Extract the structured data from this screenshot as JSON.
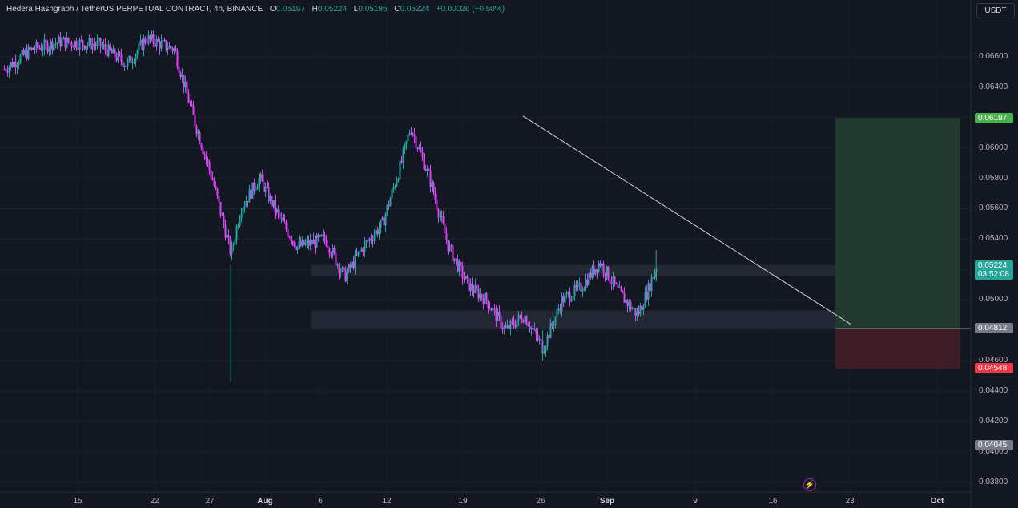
{
  "header": {
    "symbol": "Hedera Hashgraph / TetherUS PERPETUAL CONTRACT, 4h, BINANCE",
    "open_label": "O",
    "open": "0.05197",
    "high_label": "H",
    "high": "0.05224",
    "low_label": "L",
    "low": "0.05195",
    "close_label": "C",
    "close": "0.05224",
    "change": "+0.00026 (+0.50%)"
  },
  "currency_button": "USDT",
  "colors": {
    "background": "#131722",
    "bullish": "#26a69a",
    "bearish": "#e040fb",
    "profit_zone": "#223a2e",
    "loss_zone": "#3d1e26",
    "trendline": "#d1d4dc",
    "zone": "#2a2e39"
  },
  "price_badges": {
    "target": {
      "value": "0.06197",
      "color": "#4caf50"
    },
    "current": {
      "value": "0.05224",
      "time": "03:52:08",
      "color": "#26a69a"
    },
    "entry": {
      "value": "0.04812",
      "color": "#787b86"
    },
    "stop": {
      "value": "0.04548",
      "color": "#f23645"
    },
    "marker": {
      "value": "0.04045",
      "color": "#787b86"
    }
  },
  "icons": {
    "alert": "lightning-icon"
  },
  "chart_data": {
    "type": "candlestick",
    "title": "Hedera Hashgraph / TetherUS PERPETUAL CONTRACT, 4h, BINANCE",
    "xlabel": "",
    "ylabel": "",
    "y_ticks": [
      "0.06600",
      "0.06400",
      "0.06200",
      "0.06000",
      "0.05800",
      "0.05600",
      "0.05400",
      "0.05200",
      "0.05000",
      "0.04800",
      "0.04600",
      "0.04400",
      "0.04200",
      "0.04000",
      "0.03800"
    ],
    "x_ticks": [
      {
        "label": "15",
        "bold": false
      },
      {
        "label": "22",
        "bold": false
      },
      {
        "label": "27",
        "bold": false
      },
      {
        "label": "Aug",
        "bold": true
      },
      {
        "label": "6",
        "bold": false
      },
      {
        "label": "12",
        "bold": false
      },
      {
        "label": "19",
        "bold": false
      },
      {
        "label": "26",
        "bold": false
      },
      {
        "label": "Sep",
        "bold": true
      },
      {
        "label": "9",
        "bold": false
      },
      {
        "label": "16",
        "bold": false
      },
      {
        "label": "23",
        "bold": false
      },
      {
        "label": "Oct",
        "bold": true
      }
    ],
    "approx_close_path": [
      [
        "Jul 12",
        0.0652
      ],
      [
        "Jul 15",
        0.0665
      ],
      [
        "Jul 18",
        0.067
      ],
      [
        "Jul 22",
        0.0668
      ],
      [
        "Jul 25",
        0.0655
      ],
      [
        "Jul 27",
        0.0672
      ],
      [
        "Jul 30",
        0.0665
      ],
      [
        "Aug 1",
        0.062
      ],
      [
        "Aug 3",
        0.058
      ],
      [
        "Aug 5",
        0.053
      ],
      [
        "Aug 6",
        0.056
      ],
      [
        "Aug 8",
        0.058
      ],
      [
        "Aug 10",
        0.0555
      ],
      [
        "Aug 12",
        0.0535
      ],
      [
        "Aug 15",
        0.054
      ],
      [
        "Aug 17",
        0.0515
      ],
      [
        "Aug 19",
        0.0535
      ],
      [
        "Aug 21",
        0.055
      ],
      [
        "Aug 23",
        0.059
      ],
      [
        "Aug 24",
        0.0614
      ],
      [
        "Aug 26",
        0.058
      ],
      [
        "Aug 28",
        0.0535
      ],
      [
        "Aug 30",
        0.051
      ],
      [
        "Sep 1",
        0.05
      ],
      [
        "Sep 3",
        0.048
      ],
      [
        "Sep 5",
        0.049
      ],
      [
        "Sep 7",
        0.0468
      ],
      [
        "Sep 9",
        0.05
      ],
      [
        "Sep 11",
        0.0508
      ],
      [
        "Sep 13",
        0.0525
      ],
      [
        "Sep 15",
        0.0505
      ],
      [
        "Sep 17",
        0.049
      ],
      [
        "Sep 18",
        0.0505
      ],
      [
        "Sep 19",
        0.05224
      ]
    ],
    "trendline": {
      "from": [
        "Aug 24",
        0.0621
      ],
      "to": [
        "Sep 23",
        0.0484
      ]
    },
    "zones": [
      {
        "from": "Aug 5",
        "to": "Sep 27",
        "top": 0.0523,
        "bottom": 0.0516
      },
      {
        "from": "Aug 5",
        "to": "Sep 27",
        "top": 0.0493,
        "bottom": 0.0481
      }
    ],
    "position": {
      "entry": 0.04812,
      "target": 0.06197,
      "stop": 0.04548,
      "from": "Sep 23",
      "to": "Sep 30"
    },
    "ylim": [
      0.0373,
      0.068
    ],
    "grid": true,
    "legend": "none"
  }
}
